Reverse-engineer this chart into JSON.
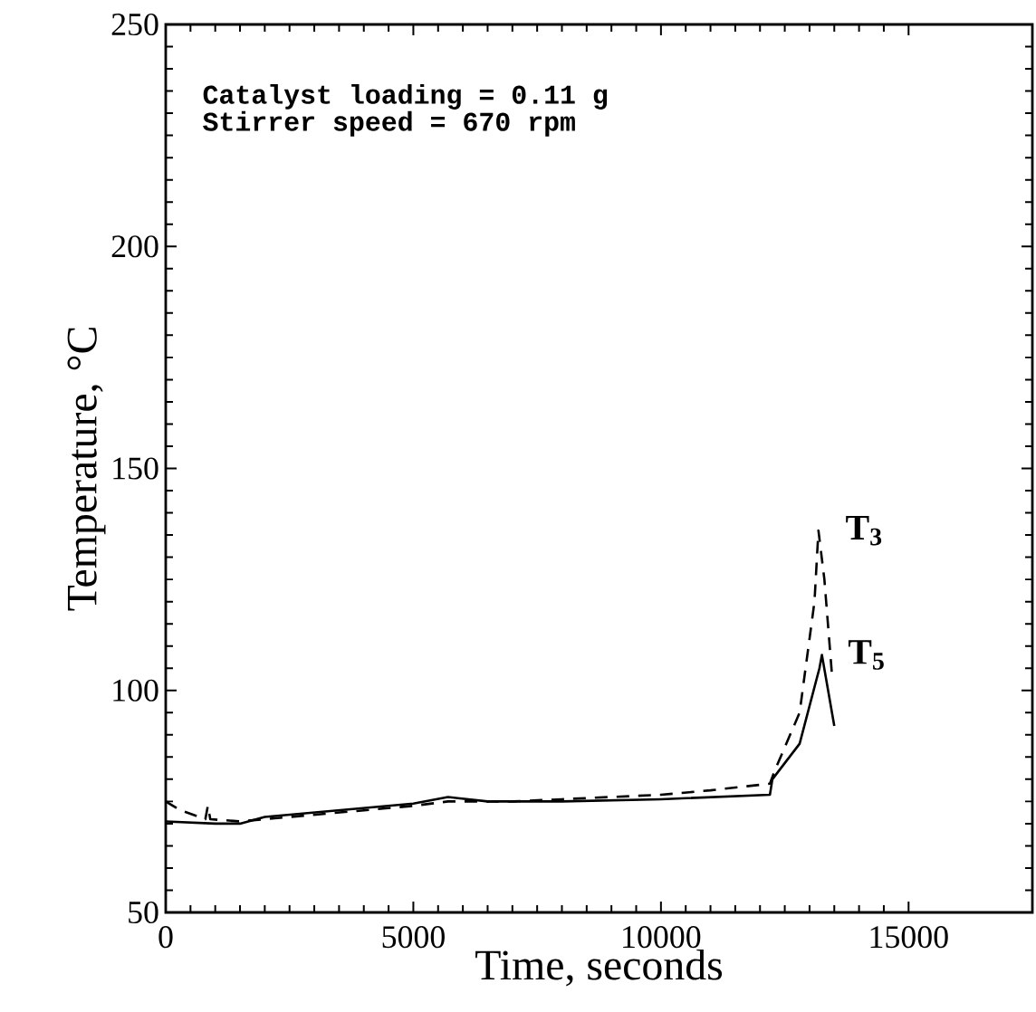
{
  "chart_data": {
    "type": "line",
    "xlabel": "Time,  seconds",
    "ylabel": "Temperature,  °C",
    "annotations": [
      "Catalyst loading = 0.11 g",
      "Stirrer speed = 670 rpm"
    ],
    "xlim": [
      0,
      17500
    ],
    "ylim": [
      50,
      250
    ],
    "xticks": [
      0,
      5000,
      10000,
      15000
    ],
    "yticks": [
      50,
      100,
      150,
      200,
      250
    ],
    "legend": false,
    "grid": false,
    "series": [
      {
        "name": "T$_{5}$",
        "color": "#000000",
        "line_style": "solid",
        "x": [
          0,
          1000,
          1500,
          2000,
          3000,
          4000,
          5000,
          5700,
          6500,
          7000,
          8000,
          10000,
          12200,
          12250,
          12800,
          13200,
          13250,
          13500
        ],
        "values": [
          70.5,
          70,
          70,
          71.5,
          72.5,
          73.5,
          74.5,
          76,
          75,
          75,
          75,
          75.5,
          76.5,
          80,
          88,
          105,
          108,
          92
        ]
      },
      {
        "name": "T$_{3}$",
        "color": "#000000",
        "line_style": "dashed",
        "x": [
          0,
          300,
          800,
          850,
          900,
          1500,
          2000,
          3000,
          4000,
          5000,
          5700,
          7000,
          8000,
          9000,
          10000,
          11000,
          12200,
          12300,
          12800,
          13100,
          13180,
          13300,
          13450
        ],
        "values": [
          75,
          73,
          71,
          74,
          71,
          70.5,
          71,
          72,
          73,
          74,
          75,
          75,
          75.5,
          76,
          76.5,
          77.5,
          79,
          82,
          95,
          120,
          136,
          125,
          104
        ]
      }
    ]
  }
}
